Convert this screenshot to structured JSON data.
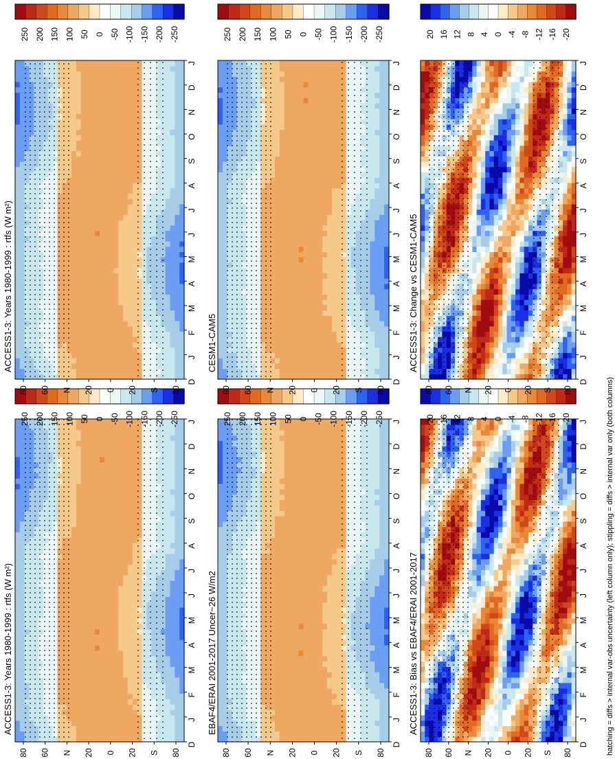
{
  "chart_data": [
    {
      "type": "heatmap",
      "title": "ACCESS1-3: Years 1980-1999 : rtfs (W m²)",
      "x_categories": [
        "D",
        "J",
        "F",
        "M",
        "A",
        "M",
        "J",
        "J",
        "A",
        "S",
        "O",
        "N",
        "D",
        "J"
      ],
      "y_ticks": [
        "80",
        "60",
        "N",
        "20",
        "0",
        "20",
        "S",
        "80"
      ],
      "colorbar": [
        "250",
        "200",
        "150",
        "100",
        "50",
        "0",
        "-50",
        "-100",
        "-150",
        "-200",
        "-250"
      ],
      "kind": "climatology"
    },
    {
      "type": "heatmap",
      "title": "ACCESS1-3: Years 1980-1999 : rtfs (W m²)",
      "x_categories": [
        "D",
        "J",
        "F",
        "M",
        "A",
        "M",
        "J",
        "J",
        "A",
        "S",
        "O",
        "N",
        "D",
        "J"
      ],
      "y_ticks": [
        "80",
        "60",
        "N",
        "20",
        "0",
        "20",
        "S",
        "80"
      ],
      "colorbar": [
        "250",
        "200",
        "150",
        "100",
        "50",
        "0",
        "-50",
        "-100",
        "-150",
        "-200",
        "-250"
      ],
      "kind": "climatology"
    },
    {
      "type": "heatmap",
      "title": "EBAF4/ERAI 2001-2017 Uncer~26 W/m2",
      "x_categories": [
        "D",
        "J",
        "F",
        "M",
        "A",
        "M",
        "J",
        "J",
        "A",
        "S",
        "O",
        "N",
        "D",
        "J"
      ],
      "y_ticks": [
        "80",
        "60",
        "N",
        "20",
        "0",
        "20",
        "S",
        "80"
      ],
      "colorbar": [
        "250",
        "200",
        "150",
        "100",
        "50",
        "0",
        "-50",
        "-100",
        "-150",
        "-200",
        "-250"
      ],
      "kind": "climatology"
    },
    {
      "type": "heatmap",
      "title": "CESM1-CAM5",
      "x_categories": [
        "D",
        "J",
        "F",
        "M",
        "A",
        "M",
        "J",
        "J",
        "A",
        "S",
        "O",
        "N",
        "D",
        "J"
      ],
      "y_ticks": [
        "80",
        "60",
        "N",
        "20",
        "0",
        "20",
        "S",
        "80"
      ],
      "colorbar": [
        "250",
        "200",
        "150",
        "100",
        "50",
        "0",
        "-50",
        "-100",
        "-150",
        "-200",
        "-250"
      ],
      "kind": "climatology"
    },
    {
      "type": "heatmap",
      "title": "ACCESS1-3: Bias vs EBAF4/ERAI 2001-2017",
      "x_categories": [
        "D",
        "J",
        "F",
        "M",
        "A",
        "M",
        "J",
        "J",
        "A",
        "S",
        "O",
        "N",
        "D",
        "J"
      ],
      "y_ticks": [
        "80",
        "60",
        "N",
        "20",
        "0",
        "20",
        "S",
        "80"
      ],
      "colorbar": [
        "20",
        "16",
        "12",
        "8",
        "4",
        "0",
        "-4",
        "-8",
        "-12",
        "-16",
        "-20"
      ],
      "kind": "difference"
    },
    {
      "type": "heatmap",
      "title": "ACCESS1-3: Change vs CESM1-CAM5",
      "x_categories": [
        "D",
        "J",
        "F",
        "M",
        "A",
        "M",
        "J",
        "J",
        "A",
        "S",
        "O",
        "N",
        "D",
        "J"
      ],
      "y_ticks": [
        "80",
        "60",
        "N",
        "20",
        "0",
        "20",
        "S",
        "80"
      ],
      "colorbar": [
        "20",
        "16",
        "12",
        "8",
        "4",
        "0",
        "-4",
        "-8",
        "-12",
        "-16",
        "-20"
      ],
      "kind": "difference"
    }
  ],
  "footnote": "hatching = diffs > internal var-obs uncertainty (left column only); stippling = diffs > internal var only (both columns)",
  "colors": {
    "diverging": [
      "#0a0aa8",
      "#1a2ee6",
      "#2e62f0",
      "#6b9ef2",
      "#a8cde8",
      "#c8e8ee",
      "#eaf7f6",
      "#ffffff",
      "#fdebc8",
      "#f5c98a",
      "#eea862",
      "#e8893a",
      "#e06a20",
      "#d04818",
      "#c02818",
      "#a00c10"
    ]
  }
}
